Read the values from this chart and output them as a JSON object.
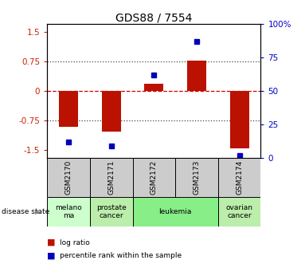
{
  "title": "GDS88 / 7554",
  "samples": [
    "GSM2170",
    "GSM2171",
    "GSM2172",
    "GSM2173",
    "GSM2174"
  ],
  "log_ratio": [
    -0.9,
    -1.02,
    0.18,
    0.78,
    -1.45
  ],
  "percentile_rank": [
    12,
    9,
    62,
    87,
    2
  ],
  "disease_states": [
    {
      "label": "melano\nma",
      "color": "#ccffcc",
      "span": [
        0,
        1
      ]
    },
    {
      "label": "prostate\ncancer",
      "color": "#bbeeaa",
      "span": [
        1,
        2
      ]
    },
    {
      "label": "leukemia",
      "color": "#88ee88",
      "span": [
        2,
        4
      ]
    },
    {
      "label": "ovarian\ncancer",
      "color": "#bbeeaa",
      "span": [
        4,
        5
      ]
    }
  ],
  "bar_color": "#bb1100",
  "dot_color": "#0000bb",
  "ylim_left": [
    -1.7,
    1.7
  ],
  "ylim_right": [
    0,
    100
  ],
  "yticks_left": [
    -1.5,
    -0.75,
    0,
    0.75,
    1.5
  ],
  "ytick_labels_left": [
    "-1.5",
    "-0.75",
    "0",
    "0.75",
    "1.5"
  ],
  "yticks_right": [
    0,
    25,
    50,
    75,
    100
  ],
  "ytick_labels_right": [
    "0",
    "25",
    "50",
    "75",
    "100%"
  ],
  "hlines_dotted": [
    0.75,
    -0.75
  ],
  "hline_zero_color": "#cc0000",
  "hline_dotted_color": "#444444",
  "background_sample": "#cccccc",
  "disease_label": "disease state",
  "legend_log_ratio": "log ratio",
  "legend_percentile": "percentile rank within the sample"
}
